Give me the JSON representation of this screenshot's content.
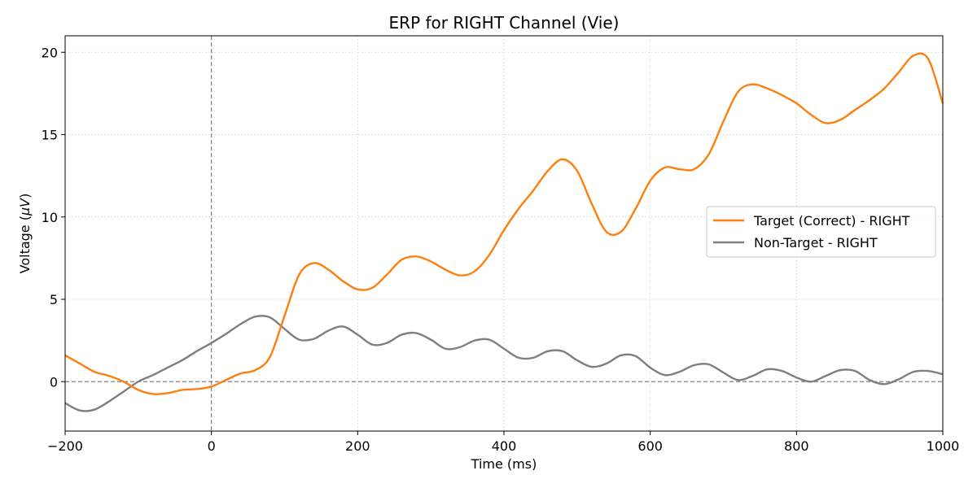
{
  "chart_data": {
    "type": "line",
    "title": "ERP for RIGHT Channel (Vie)",
    "xlabel": "Time (ms)",
    "ylabel_prefix": "Voltage (",
    "ylabel_unit": "μV",
    "ylabel_suffix": ")",
    "xlim": [
      -200,
      1000
    ],
    "ylim": [
      -3,
      21
    ],
    "xticks": [
      -200,
      0,
      200,
      400,
      600,
      800,
      1000
    ],
    "yticks": [
      0,
      5,
      10,
      15,
      20
    ],
    "grid": true,
    "legend_position": "center-right",
    "reference_lines": {
      "x": 0,
      "y": 0
    },
    "x": [
      -200,
      -180,
      -160,
      -140,
      -120,
      -100,
      -80,
      -60,
      -40,
      -20,
      0,
      20,
      40,
      60,
      80,
      100,
      120,
      140,
      160,
      180,
      200,
      220,
      240,
      260,
      280,
      300,
      320,
      340,
      360,
      380,
      400,
      420,
      440,
      460,
      480,
      500,
      520,
      540,
      560,
      580,
      600,
      620,
      640,
      660,
      680,
      700,
      720,
      740,
      760,
      780,
      800,
      820,
      840,
      860,
      880,
      900,
      920,
      940,
      960,
      980,
      1000
    ],
    "series": [
      {
        "name": "Target (Correct) - RIGHT",
        "color": "#ff7f0e",
        "values": [
          1.6,
          1.1,
          0.6,
          0.35,
          0.0,
          -0.5,
          -0.75,
          -0.7,
          -0.5,
          -0.45,
          -0.3,
          0.1,
          0.5,
          0.7,
          1.5,
          4.0,
          6.5,
          7.2,
          6.8,
          6.1,
          5.6,
          5.7,
          6.5,
          7.4,
          7.6,
          7.3,
          6.8,
          6.45,
          6.7,
          7.7,
          9.2,
          10.5,
          11.6,
          12.8,
          13.5,
          12.8,
          10.8,
          9.1,
          9.1,
          10.5,
          12.2,
          13.0,
          12.9,
          12.9,
          13.8,
          15.8,
          17.6,
          18.05,
          17.8,
          17.4,
          16.9,
          16.2,
          15.7,
          15.9,
          16.5,
          17.1,
          17.8,
          18.8,
          19.8,
          19.6,
          16.9
        ]
      },
      {
        "name": "Non-Target - RIGHT",
        "color": "#7f7f7f",
        "values": [
          -1.3,
          -1.75,
          -1.7,
          -1.2,
          -0.6,
          0.0,
          0.4,
          0.85,
          1.3,
          1.85,
          2.35,
          2.9,
          3.5,
          3.95,
          3.9,
          3.2,
          2.55,
          2.6,
          3.1,
          3.35,
          2.85,
          2.25,
          2.35,
          2.85,
          2.95,
          2.55,
          2.0,
          2.1,
          2.5,
          2.55,
          2.0,
          1.45,
          1.45,
          1.85,
          1.85,
          1.3,
          0.9,
          1.1,
          1.6,
          1.55,
          0.85,
          0.4,
          0.6,
          1.0,
          1.05,
          0.55,
          0.1,
          0.35,
          0.75,
          0.65,
          0.25,
          0.0,
          0.35,
          0.7,
          0.65,
          0.1,
          -0.15,
          0.15,
          0.6,
          0.65,
          0.45
        ]
      }
    ]
  }
}
